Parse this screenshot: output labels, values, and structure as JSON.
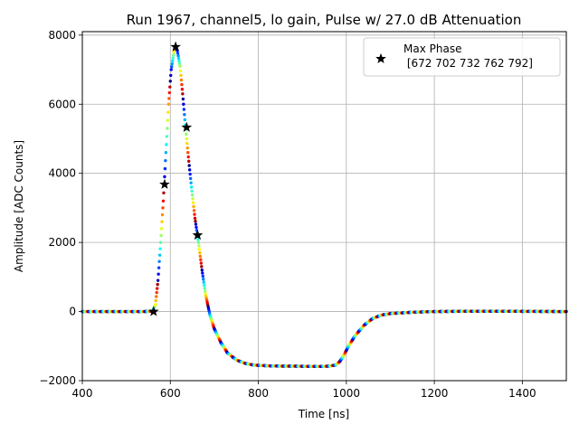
{
  "chart_data": {
    "type": "scatter",
    "title": "Run 1967, channel5, lo gain, Pulse w/ 27.0 dB Attenuation",
    "xlabel": "Time [ns]",
    "ylabel": "Amplitude [ADC Counts]",
    "xlim": [
      400,
      1500
    ],
    "ylim": [
      -2000,
      8100
    ],
    "xticks": [
      400,
      600,
      800,
      1000,
      1200,
      1400
    ],
    "yticks": [
      -2000,
      0,
      2000,
      4000,
      6000,
      8000
    ],
    "grid": true,
    "legend": {
      "placement": "top-right",
      "entries": [
        {
          "label_line1": "Max Phase",
          "label_line2": " [672 702 732 762 792]",
          "marker": "star-icon"
        }
      ]
    },
    "pulse_shape": {
      "x": [
        400,
        540,
        560,
        566,
        572,
        578,
        584,
        590,
        596,
        602,
        608,
        612,
        616,
        622,
        628,
        634,
        640,
        648,
        656,
        664,
        672,
        680,
        690,
        700,
        715,
        730,
        750,
        770,
        790,
        820,
        850,
        880,
        910,
        940,
        960,
        975,
        985,
        995,
        1005,
        1020,
        1040,
        1060,
        1080,
        1100,
        1150,
        1200,
        1300,
        1400,
        1500
      ],
      "y": [
        0,
        0,
        10,
        200,
        900,
        2000,
        3200,
        4600,
        6000,
        7000,
        7500,
        7650,
        7550,
        7100,
        6300,
        5400,
        4600,
        3600,
        2700,
        2000,
        1200,
        500,
        -100,
        -500,
        -900,
        -1200,
        -1400,
        -1500,
        -1550,
        -1570,
        -1580,
        -1580,
        -1585,
        -1590,
        -1580,
        -1550,
        -1450,
        -1250,
        -1000,
        -700,
        -400,
        -200,
        -100,
        -60,
        -20,
        0,
        10,
        5,
        0
      ]
    },
    "series": [
      {
        "name": "Max Phase",
        "marker": "star",
        "points": [
          {
            "x": 562,
            "y": 0
          },
          {
            "x": 587,
            "y": 3680
          },
          {
            "x": 612,
            "y": 7660
          },
          {
            "x": 637,
            "y": 5330
          },
          {
            "x": 662,
            "y": 2210
          }
        ]
      }
    ]
  }
}
